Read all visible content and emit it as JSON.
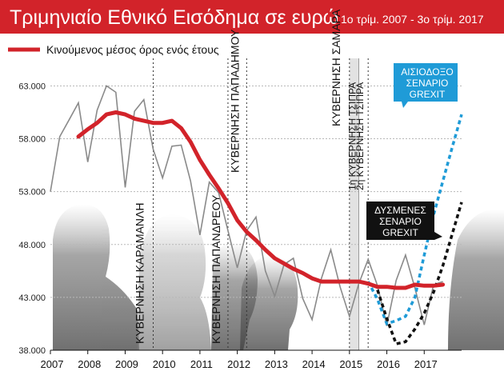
{
  "chart_data": {
    "type": "line",
    "title": "Τριμηνιαίο Εθνικό Εισόδημα σε ευρώ",
    "subtitle": "1ο τρίμ. 2007 - 3ο τρίμ. 2017",
    "legend": "Κινούμενος μέσος όρος ενός έτους",
    "xlabel": "",
    "ylabel": "",
    "x_ticks": [
      "2007",
      "2008",
      "2009",
      "2010",
      "2011",
      "2012",
      "2013",
      "2014",
      "2015",
      "2016",
      "2017"
    ],
    "y_ticks": [
      "63.000",
      "58.000",
      "53.000",
      "48.000",
      "43.000",
      "38.000"
    ],
    "y_tick_values": [
      63000,
      58000,
      53000,
      48000,
      43000,
      38000
    ],
    "ylim": [
      38000,
      65000
    ],
    "xlim": [
      2007.0,
      2018.0
    ],
    "colors": {
      "title_bg": "#d2232a",
      "moving_average": "#d2232a",
      "quarterly": "#8a8a8a",
      "optimistic": "#1f9bd7",
      "unfavorable": "#111111",
      "grid": "#b8b8b8",
      "shade": "#e2e2e2",
      "callout_blue": "#1f9bd7",
      "callout_black": "#111111"
    },
    "series": [
      {
        "key": "quarterly",
        "x": [
          2007.0,
          2007.25,
          2007.5,
          2007.75,
          2008.0,
          2008.25,
          2008.5,
          2008.75,
          2009.0,
          2009.25,
          2009.5,
          2009.75,
          2010.0,
          2010.25,
          2010.5,
          2010.75,
          2011.0,
          2011.25,
          2011.5,
          2011.75,
          2012.0,
          2012.25,
          2012.5,
          2012.75,
          2013.0,
          2013.25,
          2013.5,
          2013.75,
          2014.0,
          2014.25,
          2014.5,
          2014.75,
          2015.0,
          2015.25,
          2015.5,
          2015.75,
          2016.0,
          2016.25,
          2016.5,
          2016.75,
          2017.0,
          2017.25,
          2017.5
        ],
        "values": [
          53000,
          58200,
          59800,
          61400,
          55800,
          60700,
          63000,
          62400,
          53400,
          60600,
          61700,
          57000,
          54300,
          57300,
          57400,
          54000,
          48900,
          53900,
          52900,
          49300,
          45800,
          49300,
          50600,
          45500,
          43100,
          46100,
          46700,
          42900,
          40900,
          44800,
          47500,
          44000,
          41200,
          44300,
          46600,
          44100,
          40300,
          44600,
          47000,
          43900,
          40400,
          44200,
          44500
        ]
      },
      {
        "key": "moving_average",
        "x": [
          2007.75,
          2008.0,
          2008.25,
          2008.5,
          2008.75,
          2009.0,
          2009.25,
          2009.5,
          2009.75,
          2010.0,
          2010.25,
          2010.5,
          2010.75,
          2011.0,
          2011.25,
          2011.5,
          2011.75,
          2012.0,
          2012.25,
          2012.5,
          2012.75,
          2013.0,
          2013.25,
          2013.5,
          2013.75,
          2014.0,
          2014.25,
          2014.5,
          2014.75,
          2015.0,
          2015.25,
          2015.5,
          2015.75,
          2016.0,
          2016.25,
          2016.5,
          2016.75,
          2017.0,
          2017.25,
          2017.5
        ],
        "values": [
          58200,
          58900,
          59500,
          60300,
          60500,
          60300,
          59900,
          59700,
          59500,
          59500,
          59700,
          59000,
          57700,
          56000,
          54600,
          53300,
          51900,
          50300,
          49200,
          48400,
          47500,
          46700,
          46200,
          45700,
          45300,
          44800,
          44500,
          44500,
          44500,
          44500,
          44500,
          44300,
          44000,
          44000,
          43900,
          43900,
          44200,
          44100,
          44100,
          44200
        ]
      },
      {
        "key": "optimistic",
        "x": [
          2015.5,
          2015.75,
          2016.0,
          2016.25,
          2016.5,
          2016.75,
          2017.0,
          2017.25,
          2017.5,
          2017.75,
          2018.0
        ],
        "values": [
          44500,
          42800,
          40500,
          40800,
          41200,
          43000,
          47000,
          50800,
          54000,
          57200,
          60300
        ]
      },
      {
        "key": "unfavorable",
        "x": [
          2015.75,
          2016.0,
          2016.25,
          2016.5,
          2016.75,
          2017.0,
          2017.25,
          2017.5,
          2017.75,
          2018.0
        ],
        "values": [
          43700,
          41000,
          38600,
          38800,
          40000,
          41500,
          43500,
          46000,
          49000,
          52000
        ]
      }
    ],
    "shade_band": [
      2015.0,
      2015.25
    ],
    "events": [
      {
        "x": 2009.75,
        "label": "ΚΥΒΕΡΝΗΣΗ ΚΑΡΑΜΑΝΛΗ",
        "dotted": true
      },
      {
        "x": 2011.75,
        "label": "ΚΥΒΕΡΝΗΣΗ ΠΑΠΑΝΔΡΕΟΥ",
        "dotted": true
      },
      {
        "x": 2012.25,
        "label": "ΚΥΒΕΡΝΗΣΗ ΠΑΠΑΔΗΜΟΥ",
        "dotted": true
      },
      {
        "x": 2015.0,
        "label": "ΚΥΒΕΡΝΗΣΗ ΣΑΜΑΡΑ",
        "dotted": true
      },
      {
        "x": 2015.25,
        "label": "1η ΚΥΒΕΡΝΗΣΗ ΤΣΙΠΡΑ",
        "dotted": false
      },
      {
        "x": 2015.5,
        "label": "2η ΚΥΒΕΡΝΗΣΗ ΤΣΙΠΡΑ",
        "dotted": true
      }
    ],
    "callouts": {
      "optimistic": [
        "ΑΙΣΙΟΔΟΞΟ",
        "ΣΕΝΑΡΙΟ",
        "GREXIT"
      ],
      "unfavorable": [
        "ΔΥΣΜΕΝΕΣ",
        "ΣΕΝΑΡΙΟ",
        "GREXIT"
      ]
    },
    "grid": true,
    "legend_position": "top-left"
  }
}
